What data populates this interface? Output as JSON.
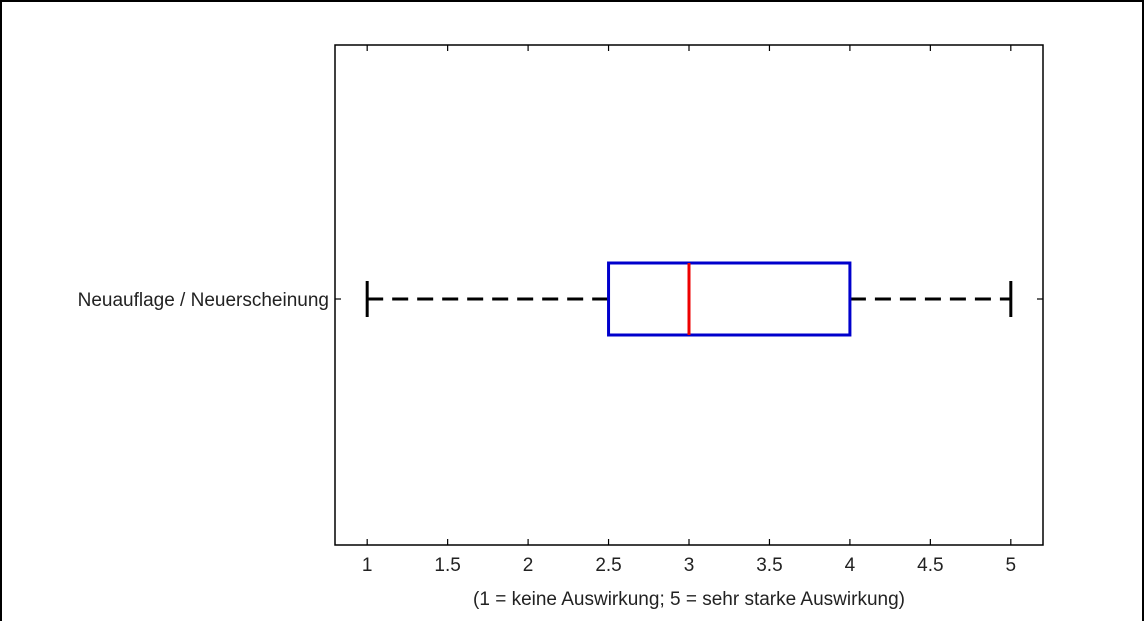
{
  "chart_data": {
    "type": "boxplot",
    "orientation": "horizontal",
    "categories": [
      "Neuauflage / Neuerscheinung"
    ],
    "boxes": [
      {
        "category": "Neuauflage / Neuerscheinung",
        "whisker_low": 1,
        "q1": 2.5,
        "median": 3,
        "q3": 4,
        "whisker_high": 5
      }
    ],
    "xlim": [
      0.8,
      5.2
    ],
    "xticks": [
      1,
      1.5,
      2,
      2.5,
      3,
      3.5,
      4,
      4.5,
      5
    ],
    "xtick_labels": [
      "1",
      "1.5",
      "2",
      "2.5",
      "3",
      "3.5",
      "4",
      "4.5",
      "5"
    ],
    "xlabel": "(1 = keine Auswirkung; 5 = sehr starke Auswirkung)",
    "ylabel": "",
    "title": "",
    "grid": false,
    "colors": {
      "box": "#0000cc",
      "median": "#ee0000",
      "whisker": "#000000",
      "axes": "#000000"
    }
  }
}
